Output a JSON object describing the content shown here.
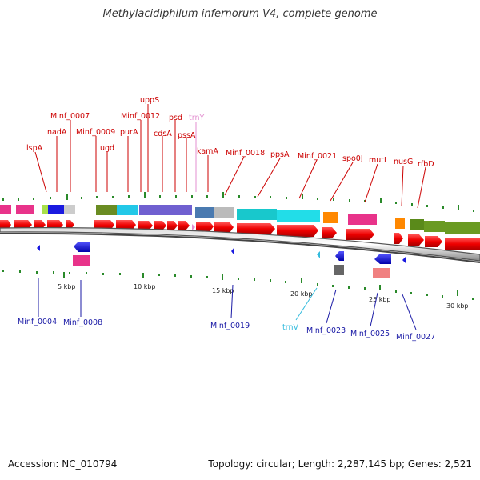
{
  "title": "Methylacidiphilum infernorum V4, complete genome",
  "footer": {
    "accession": "Accession: NC_010794",
    "topology": "Topology: circular; Length: 2,287,145 bp; Genes: 2,521"
  },
  "top_labels": [
    {
      "text": "lspA",
      "color": "red"
    },
    {
      "text": "nadA",
      "color": "red"
    },
    {
      "text": "Minf_0007",
      "color": "red"
    },
    {
      "text": "Minf_0009",
      "color": "red"
    },
    {
      "text": "ugd",
      "color": "red"
    },
    {
      "text": "purA",
      "color": "red"
    },
    {
      "text": "Minf_0012",
      "color": "red"
    },
    {
      "text": "uppS",
      "color": "red"
    },
    {
      "text": "cdsA",
      "color": "red"
    },
    {
      "text": "psd",
      "color": "red"
    },
    {
      "text": "pssA",
      "color": "red"
    },
    {
      "text": "trnY",
      "color": "pink"
    },
    {
      "text": "kamA",
      "color": "red"
    },
    {
      "text": "Minf_0018",
      "color": "red"
    },
    {
      "text": "ppsA",
      "color": "red"
    },
    {
      "text": "Minf_0021",
      "color": "red"
    },
    {
      "text": "spo0J",
      "color": "red"
    },
    {
      "text": "mutL",
      "color": "red"
    },
    {
      "text": "nusG",
      "color": "red"
    },
    {
      "text": "rfbD",
      "color": "red"
    }
  ],
  "bottom_labels": [
    {
      "text": "Minf_0004",
      "color": "blue"
    },
    {
      "text": "Minf_0008",
      "color": "blue"
    },
    {
      "text": "Minf_0019",
      "color": "blue"
    },
    {
      "text": "trnV",
      "color": "cyan"
    },
    {
      "text": "Minf_0023",
      "color": "blue"
    },
    {
      "text": "Minf_0025",
      "color": "blue"
    },
    {
      "text": "Minf_0027",
      "color": "blue"
    }
  ],
  "kbp_labels": [
    "5 kbp",
    "10 kbp",
    "15 kbp",
    "20 kbp",
    "25 kbp",
    "30 kbp"
  ]
}
